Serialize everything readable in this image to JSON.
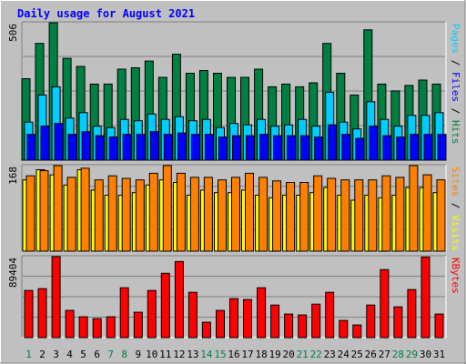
{
  "chart_data": {
    "type": "bar",
    "title": "Daily usage for August 2021",
    "categories": [
      "1",
      "2",
      "3",
      "4",
      "5",
      "6",
      "7",
      "8",
      "9",
      "10",
      "11",
      "12",
      "13",
      "14",
      "15",
      "16",
      "17",
      "18",
      "19",
      "20",
      "21",
      "22",
      "23",
      "24",
      "25",
      "26",
      "27",
      "28",
      "29",
      "30",
      "31"
    ],
    "weekend_days": [
      "1",
      "7",
      "8",
      "14",
      "15",
      "21",
      "22",
      "28",
      "29"
    ],
    "panels": [
      {
        "id": "hits",
        "ymax_label": "506",
        "ymax": 506,
        "right_label_parts": [
          {
            "text": "Pages",
            "color": "#00ccff"
          },
          {
            "text": " / ",
            "color": "#000000"
          },
          {
            "text": "Files",
            "color": "#0000ff"
          },
          {
            "text": " / ",
            "color": "#000000"
          },
          {
            "text": "Hits",
            "color": "#008040"
          }
        ],
        "series": [
          {
            "name": "Hits",
            "color": "#008040",
            "values": [
              300,
              430,
              506,
              375,
              345,
              280,
              280,
              335,
              340,
              365,
              305,
              390,
              320,
              330,
              320,
              305,
              305,
              335,
              270,
              280,
              270,
              285,
              430,
              320,
              240,
              480,
              280,
              255,
              275,
              295,
              280
            ]
          },
          {
            "name": "Files",
            "color": "#00ccff",
            "values": [
              140,
              240,
              270,
              155,
              175,
              125,
              120,
              150,
              145,
              170,
              150,
              160,
              145,
              150,
              120,
              135,
              130,
              150,
              125,
              130,
              150,
              125,
              250,
              140,
              115,
              215,
              150,
              125,
              165,
              165,
              175
            ]
          },
          {
            "name": "Pages",
            "color": "#0000ff",
            "values": [
              95,
              125,
              135,
              95,
              105,
              90,
              85,
              95,
              95,
              105,
              95,
              100,
              95,
              95,
              85,
              90,
              90,
              95,
              90,
              90,
              90,
              85,
              130,
              95,
              80,
              125,
              90,
              85,
              95,
              95,
              95
            ]
          }
        ]
      },
      {
        "id": "visits",
        "ymax_label": "168",
        "ymax": 168,
        "right_label_parts": [
          {
            "text": "Sites",
            "color": "#ff8000"
          },
          {
            "text": " / ",
            "color": "#000000"
          },
          {
            "text": "Visits",
            "color": "#ffff00"
          }
        ],
        "series": [
          {
            "name": "Visits",
            "color": "#ffff00",
            "values": [
              140,
              160,
              150,
              130,
              160,
              120,
              110,
              110,
              115,
              130,
              140,
              135,
              110,
              120,
              115,
              115,
              120,
              110,
              105,
              110,
              110,
              115,
              125,
              110,
              100,
              110,
              105,
              110,
              125,
              125,
              115
            ]
          },
          {
            "name": "Sites",
            "color": "#ff8000",
            "values": [
              148,
              158,
              168,
              145,
              163,
              140,
              148,
              143,
              140,
              153,
              168,
              153,
              145,
              145,
              140,
              145,
              153,
              145,
              138,
              135,
              135,
              148,
              143,
              140,
              140,
              140,
              148,
              145,
              168,
              150,
              140
            ]
          }
        ]
      },
      {
        "id": "kbytes",
        "ymax_label": "89404",
        "ymax": 89404,
        "right_label_parts": [
          {
            "text": "KBytes",
            "color": "#ff0000"
          }
        ],
        "series": [
          {
            "name": "KBytes",
            "color": "#ff0000",
            "values": [
              52000,
              54000,
              89404,
              30000,
              23000,
              21000,
              23000,
              55000,
              28000,
              52000,
              71000,
              84000,
              50000,
              17000,
              30000,
              43000,
              42000,
              55000,
              36000,
              26000,
              25000,
              37000,
              50000,
              19000,
              14000,
              36000,
              75000,
              34000,
              53000,
              89000,
              26000
            ]
          }
        ]
      }
    ]
  }
}
